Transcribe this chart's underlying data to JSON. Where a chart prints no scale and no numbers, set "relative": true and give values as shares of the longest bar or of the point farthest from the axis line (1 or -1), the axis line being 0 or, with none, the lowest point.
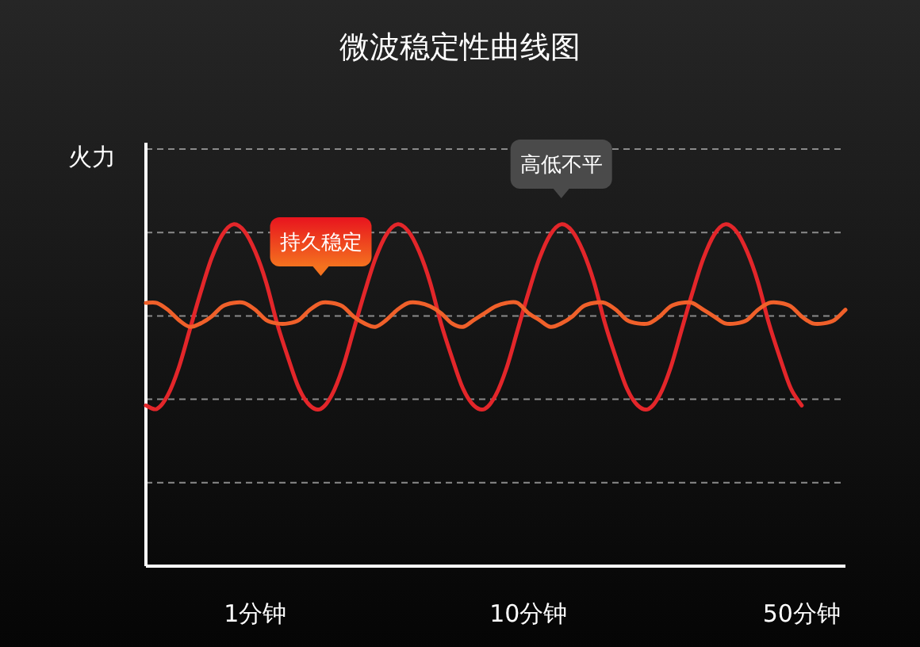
{
  "chart_data": {
    "type": "line",
    "relative": true,
    "title": "微波稳定性曲线图",
    "ylabel": "火力",
    "grid": "y",
    "categories": [
      null,
      null,
      null,
      null,
      null,
      null,
      null,
      null,
      null,
      null,
      "1分钟",
      null,
      null,
      null,
      null,
      null,
      null,
      null,
      null,
      null,
      null,
      null,
      null,
      null,
      null,
      null,
      null,
      null,
      null,
      null,
      null,
      null,
      null,
      null,
      null,
      "10分钟",
      null,
      null,
      null,
      null,
      null,
      null,
      null,
      null,
      null,
      null,
      null,
      null,
      null,
      null,
      null,
      null,
      null,
      null,
      null,
      null,
      null,
      null,
      null,
      null,
      "50分钟",
      null,
      null,
      null,
      null
    ],
    "series": [
      {
        "name": "高低不平",
        "color": "#e3262a",
        "values": [
          0.47,
          0.46,
          0.5,
          0.58,
          0.69,
          0.8,
          0.9,
          0.97,
          1.0,
          0.98,
          0.92,
          0.83,
          0.71,
          0.61,
          0.52,
          0.47,
          0.46,
          0.5,
          0.58,
          0.69,
          0.8,
          0.9,
          0.97,
          1.0,
          0.98,
          0.92,
          0.83,
          0.71,
          0.61,
          0.52,
          0.47,
          0.46,
          0.5,
          0.58,
          0.69,
          0.8,
          0.9,
          0.97,
          1.0,
          0.98,
          0.92,
          0.83,
          0.71,
          0.61,
          0.52,
          0.47,
          0.46,
          0.5,
          0.58,
          0.69,
          0.8,
          0.9,
          0.97,
          1.0,
          0.98,
          0.92,
          0.83,
          0.71,
          0.61,
          0.52,
          0.47,
          null,
          null,
          null,
          null
        ]
      },
      {
        "name": "持久稳定",
        "color": "#f0602a",
        "values": [
          0.77,
          0.77,
          0.75,
          0.72,
          0.7,
          0.71,
          0.73,
          0.76,
          0.77,
          0.77,
          0.75,
          0.72,
          0.71,
          0.71,
          0.72,
          0.75,
          0.77,
          0.77,
          0.76,
          0.73,
          0.71,
          0.7,
          0.72,
          0.75,
          0.77,
          0.77,
          0.76,
          0.74,
          0.71,
          0.7,
          0.72,
          0.74,
          0.76,
          0.77,
          0.77,
          0.74,
          0.72,
          0.7,
          0.71,
          0.73,
          0.76,
          0.77,
          0.77,
          0.75,
          0.72,
          0.71,
          0.71,
          0.73,
          0.76,
          0.77,
          0.77,
          0.75,
          0.73,
          0.71,
          0.71,
          0.72,
          0.75,
          0.77,
          0.77,
          0.76,
          0.73,
          0.71,
          0.71,
          0.72,
          0.75
        ]
      }
    ]
  }
}
